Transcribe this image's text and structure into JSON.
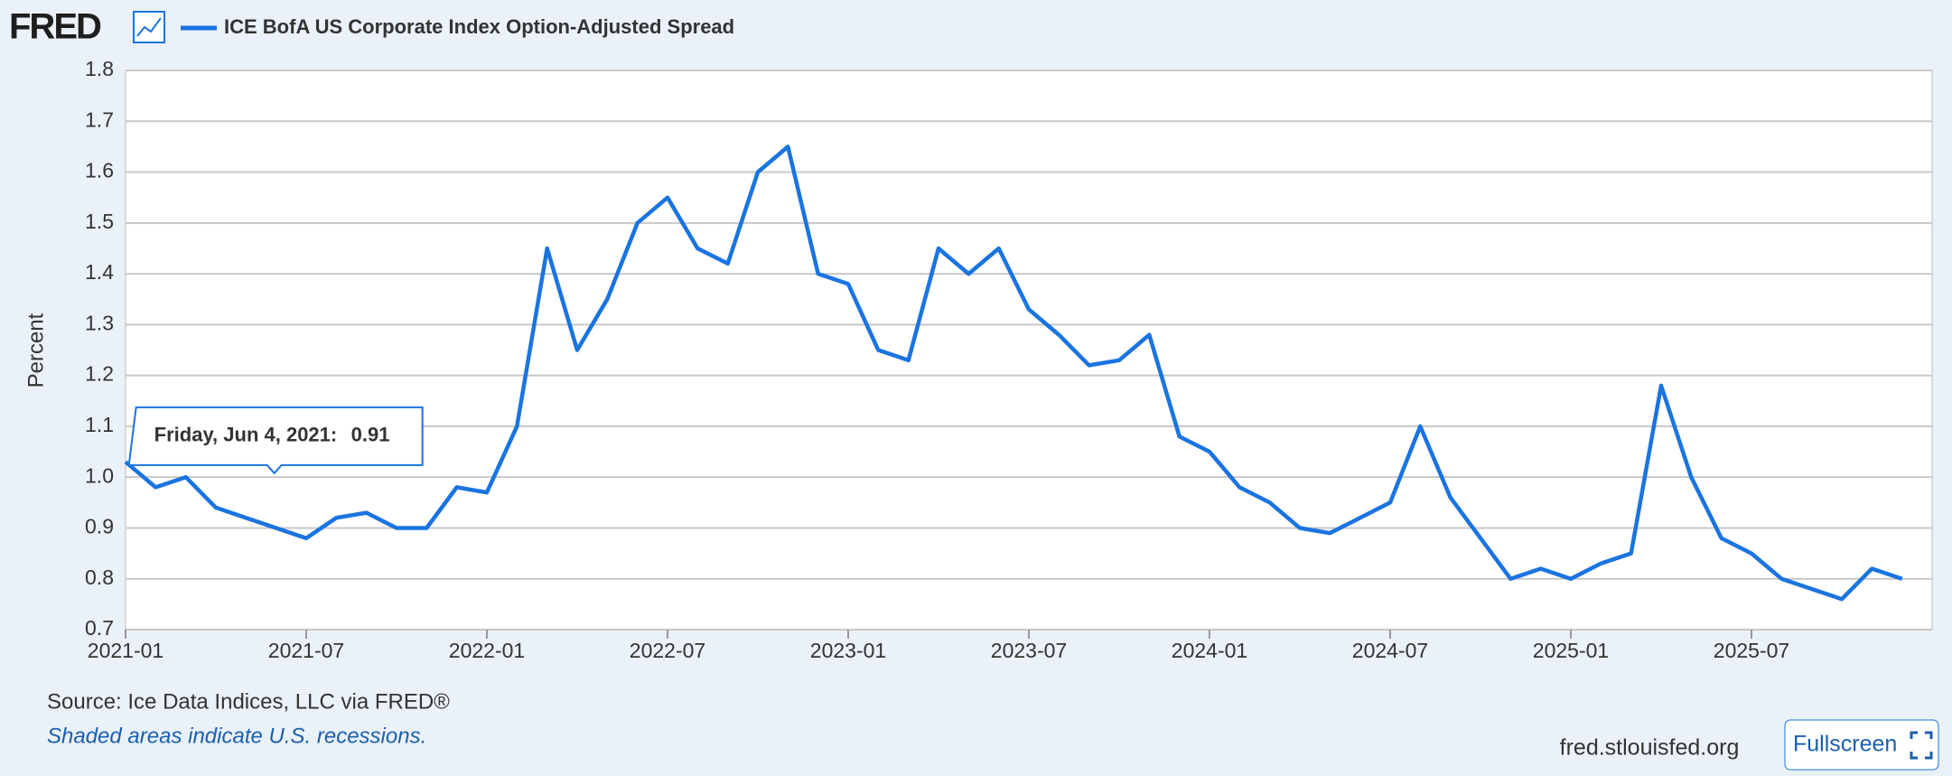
{
  "header": {
    "logo": "FRED"
  },
  "chart_data": {
    "type": "line",
    "y_label": "Percent",
    "x": [
      "2021-01",
      "2021-02",
      "2021-03",
      "2021-04",
      "2021-05",
      "2021-06",
      "2021-07",
      "2021-08",
      "2021-09",
      "2021-10",
      "2021-11",
      "2021-12",
      "2022-01",
      "2022-02",
      "2022-03",
      "2022-04",
      "2022-05",
      "2022-06",
      "2022-07",
      "2022-08",
      "2022-09",
      "2022-10",
      "2022-11",
      "2022-12",
      "2023-01",
      "2023-02",
      "2023-03",
      "2023-04",
      "2023-05",
      "2023-06",
      "2023-07",
      "2023-08",
      "2023-09",
      "2023-10",
      "2023-11",
      "2023-12",
      "2024-01",
      "2024-02",
      "2024-03",
      "2024-04",
      "2024-05",
      "2024-06",
      "2024-07",
      "2024-08",
      "2024-09",
      "2024-10",
      "2024-11",
      "2024-12",
      "2025-01",
      "2025-02",
      "2025-03",
      "2025-04",
      "2025-05",
      "2025-06",
      "2025-07",
      "2025-08",
      "2025-09",
      "2025-10",
      "2025-11",
      "2025-12"
    ],
    "series": [
      {
        "name": "ICE BofA US Corporate Index Option-Adjusted Spread",
        "color": "#1a74e0",
        "values": [
          1.03,
          0.98,
          1.0,
          0.94,
          0.92,
          0.9,
          0.88,
          0.92,
          0.93,
          0.9,
          0.9,
          0.98,
          0.97,
          1.1,
          1.45,
          1.25,
          1.35,
          1.5,
          1.55,
          1.45,
          1.42,
          1.6,
          1.65,
          1.4,
          1.38,
          1.25,
          1.23,
          1.45,
          1.4,
          1.45,
          1.33,
          1.28,
          1.22,
          1.23,
          1.28,
          1.08,
          1.05,
          0.98,
          0.95,
          0.9,
          0.89,
          0.92,
          0.95,
          1.1,
          0.96,
          0.88,
          0.8,
          0.82,
          0.8,
          0.83,
          0.85,
          1.18,
          1.0,
          0.88,
          0.85,
          0.8,
          0.78,
          0.76,
          0.82,
          0.8
        ]
      }
    ],
    "xlim": [
      "2021-01",
      "2026-01"
    ],
    "xticks": [
      "2021-01",
      "2021-07",
      "2022-01",
      "2022-07",
      "2023-01",
      "2023-07",
      "2024-01",
      "2024-07",
      "2025-01",
      "2025-07"
    ],
    "ylim": [
      0.7,
      1.8
    ],
    "yticks": [
      0.7,
      0.8,
      0.9,
      {
        "value": 1,
        "label": "1.0"
      },
      1.1,
      1.2,
      1.3,
      1.4,
      1.5,
      1.6,
      1.7,
      1.8
    ],
    "grid": true,
    "tooltip": {
      "date": "Friday, Jun 4, 2021:",
      "value": 0.91
    },
    "source": "Source: Ice Data Indices, LLC via FRED®",
    "note": "Shaded areas indicate U.S. recessions."
  },
  "footer": {
    "url": "fred.stlouisfed.org",
    "button": "Fullscreen"
  }
}
